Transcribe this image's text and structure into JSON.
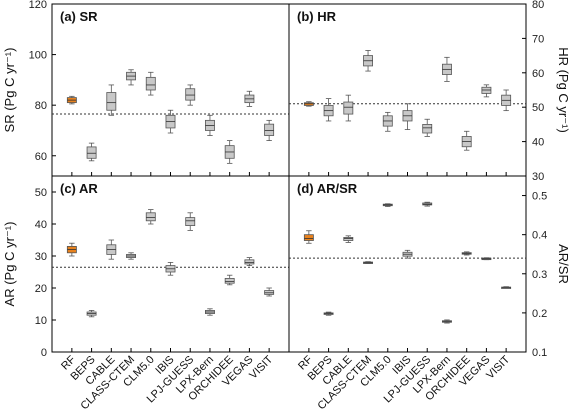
{
  "chart_data": {
    "type": "box",
    "categories": [
      "RF",
      "BEPS",
      "CABLE",
      "CLASS-CTEM",
      "CLM5.0",
      "IBIS",
      "LPJ-GUESS",
      "LPX-Bern",
      "ORCHIDEE",
      "VEGAS",
      "VISIT"
    ],
    "highlight_category": "RF",
    "highlight_color": "#e8821e",
    "box_color": "#c8c8c8",
    "x_tick_labels": [
      "RF",
      "BEPS",
      "CABLE",
      "CLASS-CTEM",
      "CLM5.0",
      "IBIS",
      "LPJ-GUESS",
      "LPX-Bern",
      "ORCHIDEE",
      "VEGAS",
      "VISIT"
    ],
    "panels": [
      {
        "id": "sr",
        "label": "(a) SR",
        "ylabel": "SR (Pg C yr⁻¹)",
        "ylabel_side": "left",
        "ylim": [
          52,
          120
        ],
        "yticks": [
          "60",
          "80",
          "100",
          "120"
        ],
        "ytick_values": [
          60,
          80,
          100,
          120
        ],
        "reference_line": 76.5,
        "boxes": [
          {
            "q1": 81,
            "median": 82,
            "q3": 83,
            "wlo": 80.5,
            "whi": 83.5
          },
          {
            "q1": 59,
            "median": 61,
            "q3": 63.5,
            "wlo": 58,
            "whi": 65
          },
          {
            "q1": 78,
            "median": 81,
            "q3": 85,
            "wlo": 76,
            "whi": 88
          },
          {
            "q1": 90,
            "median": 91.5,
            "q3": 93,
            "wlo": 88,
            "whi": 94
          },
          {
            "q1": 86,
            "median": 88,
            "q3": 91,
            "wlo": 84,
            "whi": 93
          },
          {
            "q1": 71,
            "median": 73.5,
            "q3": 76,
            "wlo": 69,
            "whi": 78
          },
          {
            "q1": 82,
            "median": 84,
            "q3": 86.5,
            "wlo": 80,
            "whi": 88
          },
          {
            "q1": 70,
            "median": 72,
            "q3": 74,
            "wlo": 68,
            "whi": 76
          },
          {
            "q1": 59,
            "median": 61.5,
            "q3": 64,
            "wlo": 57,
            "whi": 66
          },
          {
            "q1": 81,
            "median": 82.5,
            "q3": 84,
            "wlo": 79.5,
            "whi": 85.5
          },
          {
            "q1": 68,
            "median": 70,
            "q3": 72.5,
            "wlo": 66,
            "whi": 74
          }
        ]
      },
      {
        "id": "hr",
        "label": "(b) HR",
        "ylabel": "HR (Pg C yr⁻¹)",
        "ylabel_side": "right",
        "ylim": [
          30,
          80
        ],
        "yticks": [
          "30",
          "40",
          "50",
          "60",
          "70",
          "80"
        ],
        "ytick_values": [
          30,
          40,
          50,
          60,
          70,
          80
        ],
        "reference_line": 51,
        "boxes": [
          {
            "q1": 50.5,
            "median": 51,
            "q3": 51.3,
            "wlo": 50.3,
            "whi": 51.6
          },
          {
            "q1": 47.5,
            "median": 49,
            "q3": 50.5,
            "wlo": 46,
            "whi": 52.5
          },
          {
            "q1": 48,
            "median": 50,
            "q3": 51.5,
            "wlo": 46,
            "whi": 53.5
          },
          {
            "q1": 62,
            "median": 63.5,
            "q3": 65,
            "wlo": 60.5,
            "whi": 66.5
          },
          {
            "q1": 44.5,
            "median": 46,
            "q3": 47.5,
            "wlo": 43,
            "whi": 48.5
          },
          {
            "q1": 46,
            "median": 47.5,
            "q3": 49,
            "wlo": 43.5,
            "whi": 51
          },
          {
            "q1": 42.5,
            "median": 44,
            "q3": 45,
            "wlo": 41.5,
            "whi": 46.5
          },
          {
            "q1": 59.5,
            "median": 61,
            "q3": 62.5,
            "wlo": 57.5,
            "whi": 64.5
          },
          {
            "q1": 38.5,
            "median": 40,
            "q3": 41.5,
            "wlo": 37.5,
            "whi": 43
          },
          {
            "q1": 54,
            "median": 55,
            "q3": 55.8,
            "wlo": 53,
            "whi": 56.5
          },
          {
            "q1": 50.5,
            "median": 52,
            "q3": 53.5,
            "wlo": 49,
            "whi": 55
          }
        ]
      },
      {
        "id": "ar",
        "label": "(c) AR",
        "ylabel": "AR (Pg C yr⁻¹)",
        "ylabel_side": "left",
        "ylim": [
          0,
          55
        ],
        "yticks": [
          "0",
          "10",
          "20",
          "30",
          "40",
          "50"
        ],
        "ytick_values": [
          0,
          10,
          20,
          30,
          40,
          50
        ],
        "reference_line": 26.5,
        "boxes": [
          {
            "q1": 31,
            "median": 32,
            "q3": 33,
            "wlo": 30,
            "whi": 34
          },
          {
            "q1": 11.5,
            "median": 12,
            "q3": 12.5,
            "wlo": 11,
            "whi": 13
          },
          {
            "q1": 30.5,
            "median": 32,
            "q3": 33.5,
            "wlo": 29,
            "whi": 35
          },
          {
            "q1": 29.5,
            "median": 30,
            "q3": 30.5,
            "wlo": 29,
            "whi": 31
          },
          {
            "q1": 41,
            "median": 42,
            "q3": 43.5,
            "wlo": 40,
            "whi": 44.5
          },
          {
            "q1": 25,
            "median": 26,
            "q3": 27,
            "wlo": 24,
            "whi": 28
          },
          {
            "q1": 39.5,
            "median": 41,
            "q3": 42,
            "wlo": 38,
            "whi": 43.5
          },
          {
            "q1": 12,
            "median": 12.5,
            "q3": 13,
            "wlo": 11.5,
            "whi": 13.5
          },
          {
            "q1": 21.5,
            "median": 22,
            "q3": 23,
            "wlo": 21,
            "whi": 24
          },
          {
            "q1": 27.5,
            "median": 28,
            "q3": 28.8,
            "wlo": 27,
            "whi": 29.5
          },
          {
            "q1": 18,
            "median": 18.5,
            "q3": 19.2,
            "wlo": 17.5,
            "whi": 20
          }
        ]
      },
      {
        "id": "arsr",
        "label": "(d) AR/SR",
        "ylabel": "AR/SR",
        "ylabel_side": "right",
        "ylim": [
          0.1,
          0.55
        ],
        "yticks": [
          "0.1",
          "0.2",
          "0.3",
          "0.4",
          "0.5"
        ],
        "ytick_values": [
          0.1,
          0.2,
          0.3,
          0.4,
          0.5
        ],
        "reference_line": 0.34,
        "boxes": [
          {
            "q1": 0.385,
            "median": 0.39,
            "q3": 0.4,
            "wlo": 0.378,
            "whi": 0.41
          },
          {
            "q1": 0.196,
            "median": 0.198,
            "q3": 0.2,
            "wlo": 0.194,
            "whi": 0.202
          },
          {
            "q1": 0.385,
            "median": 0.39,
            "q3": 0.393,
            "wlo": 0.38,
            "whi": 0.397
          },
          {
            "q1": 0.327,
            "median": 0.328,
            "q3": 0.33,
            "wlo": 0.326,
            "whi": 0.331
          },
          {
            "q1": 0.474,
            "median": 0.476,
            "q3": 0.478,
            "wlo": 0.472,
            "whi": 0.479
          },
          {
            "q1": 0.345,
            "median": 0.35,
            "q3": 0.355,
            "wlo": 0.34,
            "whi": 0.36
          },
          {
            "q1": 0.476,
            "median": 0.478,
            "q3": 0.481,
            "wlo": 0.473,
            "whi": 0.483
          },
          {
            "q1": 0.176,
            "median": 0.178,
            "q3": 0.18,
            "wlo": 0.174,
            "whi": 0.182
          },
          {
            "q1": 0.35,
            "median": 0.352,
            "q3": 0.354,
            "wlo": 0.348,
            "whi": 0.356
          },
          {
            "q1": 0.337,
            "median": 0.338,
            "q3": 0.34,
            "wlo": 0.336,
            "whi": 0.341
          },
          {
            "q1": 0.264,
            "median": 0.265,
            "q3": 0.266,
            "wlo": 0.263,
            "whi": 0.267
          }
        ]
      }
    ]
  }
}
